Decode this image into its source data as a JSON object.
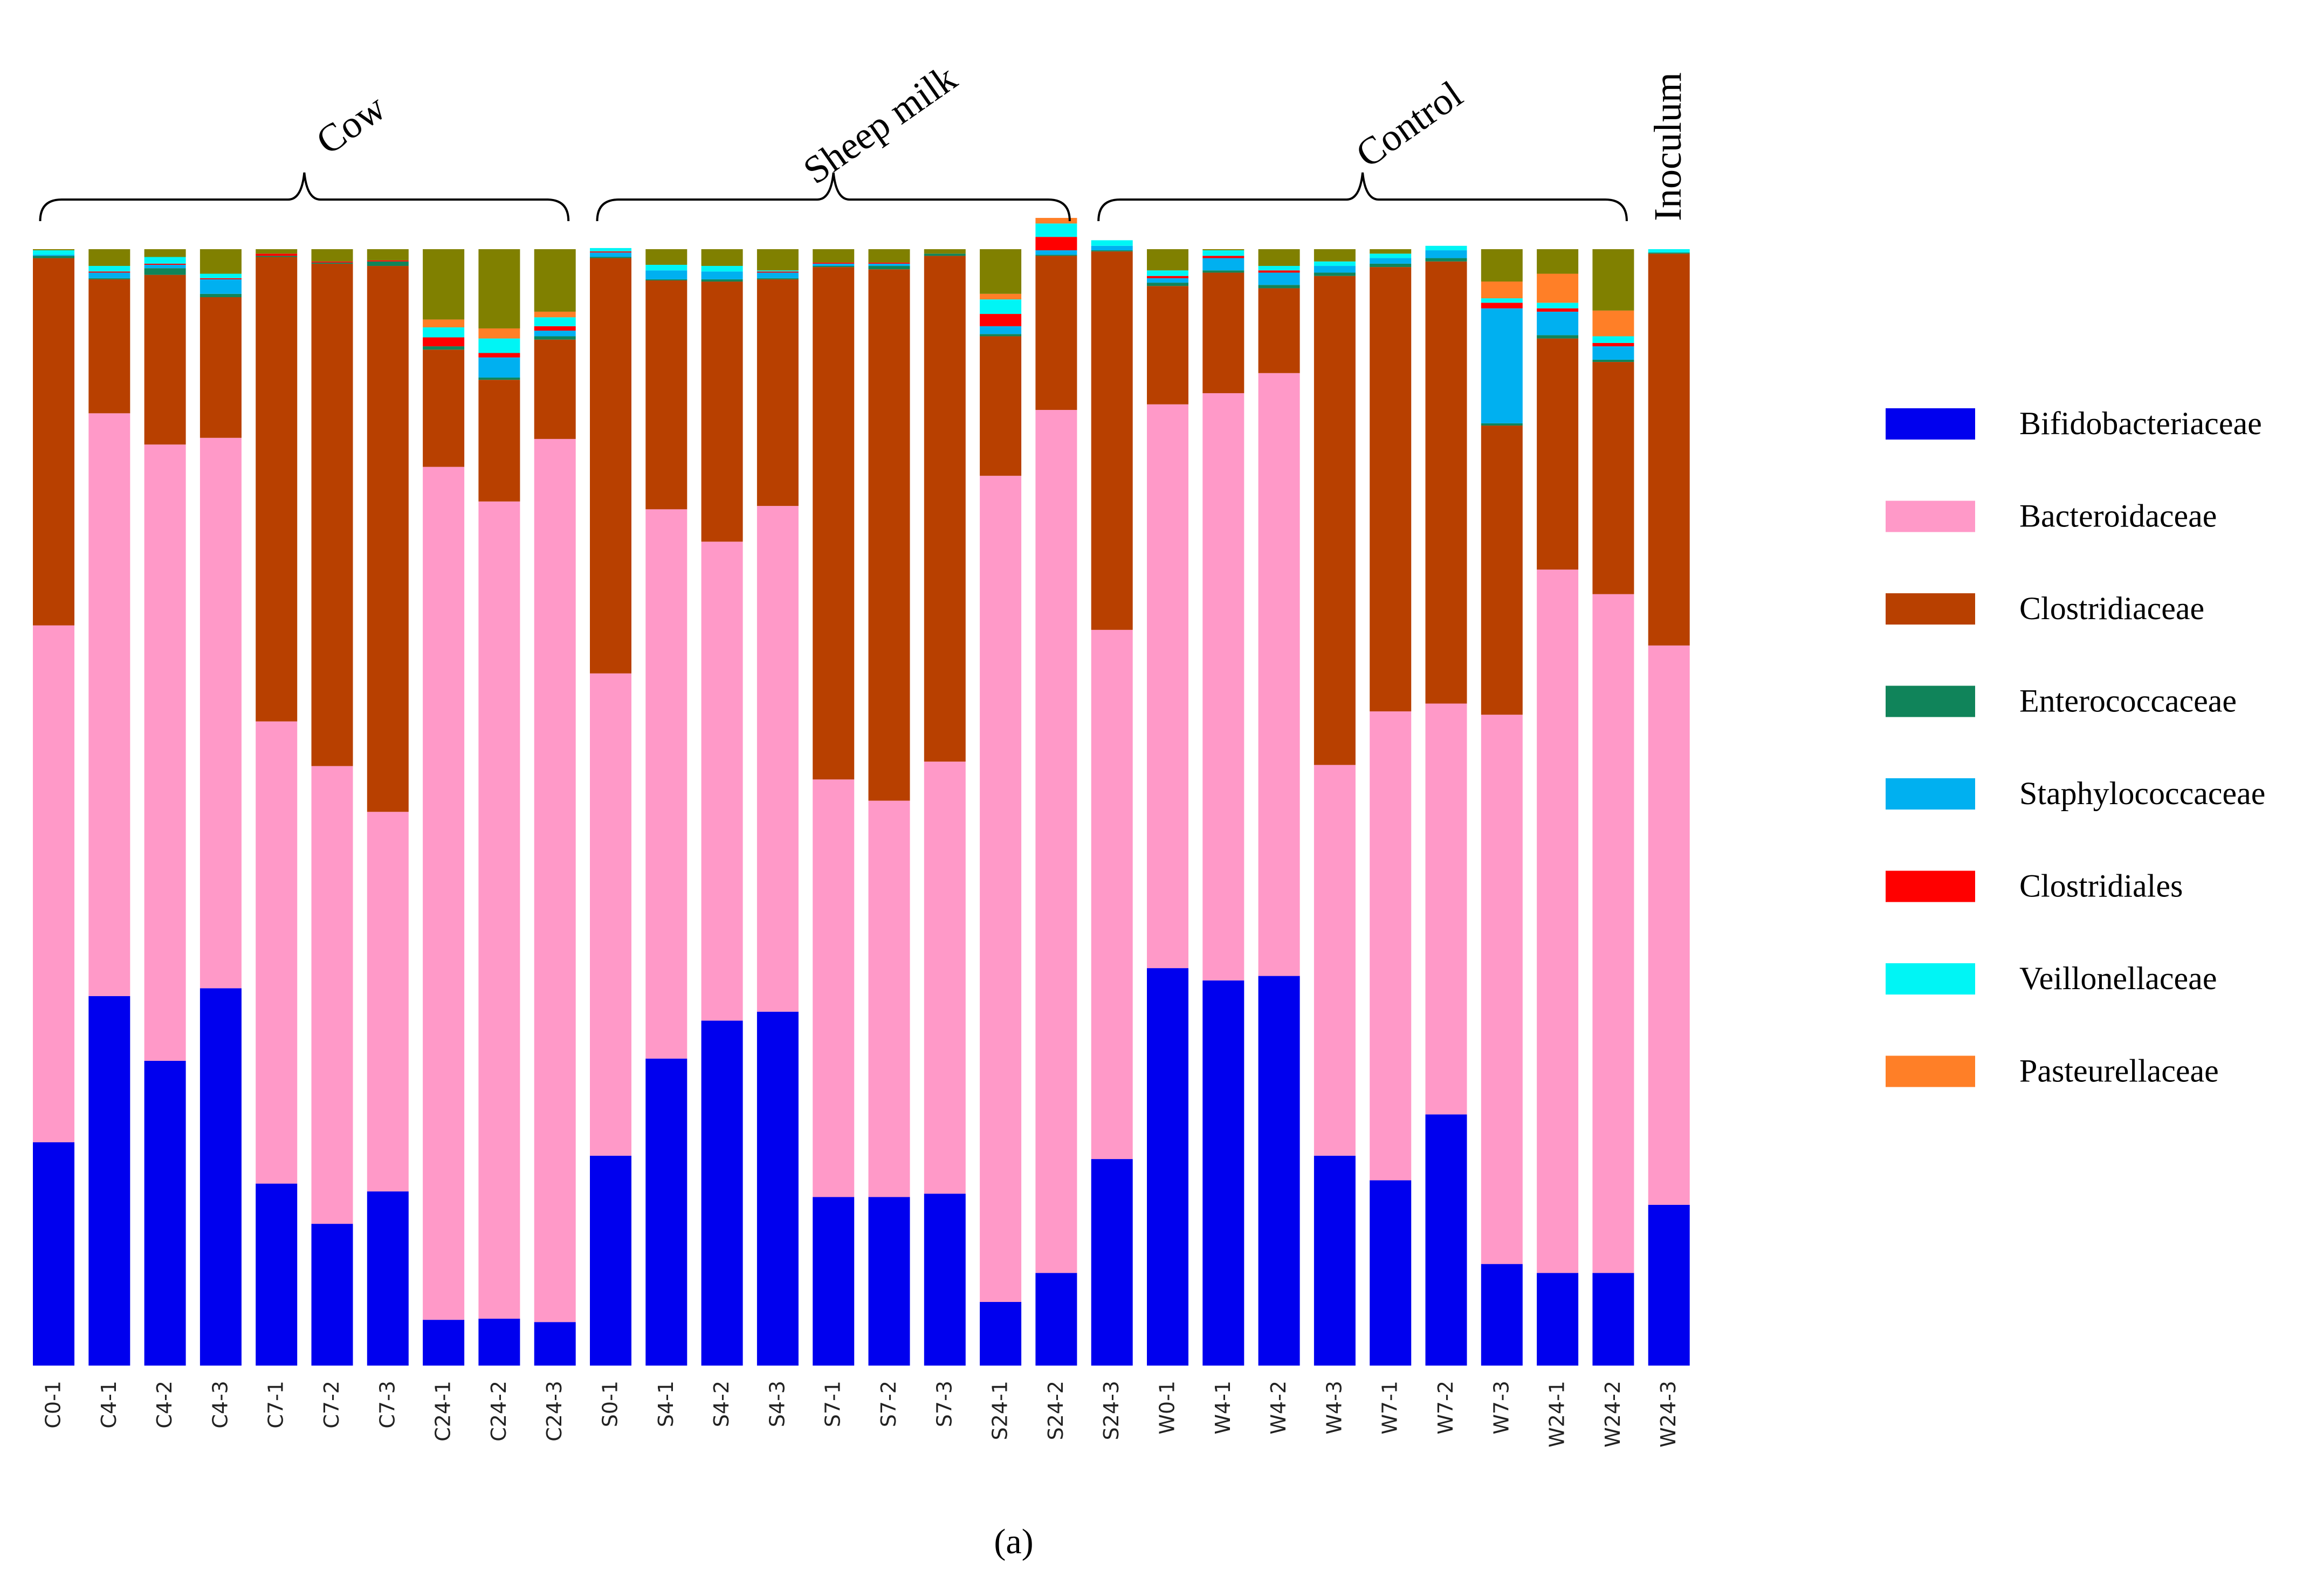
{
  "chart_data": {
    "type": "bar",
    "stacked": true,
    "normalized": true,
    "caption": "(a)",
    "groups": [
      {
        "name": "Cow",
        "categories": [
          "C0-1",
          "C4-1",
          "C4-2",
          "C4-3",
          "C7-1",
          "C7-2",
          "C7-3",
          "C24-1",
          "C24-2",
          "C24-3"
        ]
      },
      {
        "name": "Sheep milk",
        "categories": [
          "S0-1",
          "S4-1",
          "S4-2",
          "S4-3",
          "S7-1",
          "S7-2",
          "S7-3",
          "S24-1",
          "S24-2"
        ]
      },
      {
        "name": "Control",
        "categories": [
          "S24-3",
          "W0-1",
          "W4-1",
          "W4-2",
          "W4-3",
          "W7-1",
          "W7-2",
          "W7-3",
          "W24-1",
          "W24-2"
        ]
      },
      {
        "name": "Inoculum",
        "categories": [
          "W24-3"
        ]
      }
    ],
    "categories": [
      "C0-1",
      "C4-1",
      "C4-2",
      "C4-3",
      "C7-1",
      "C7-2",
      "C7-3",
      "C24-1",
      "C24-2",
      "C24-3",
      "S0-1",
      "S4-1",
      "S4-2",
      "S4-3",
      "S7-1",
      "S7-2",
      "S7-3",
      "S24-1",
      "S24-2",
      "S24-3",
      "W0-1",
      "W4-1",
      "W4-2",
      "W4-3",
      "W7-1",
      "W7-2",
      "W7-3",
      "W24-1",
      "W24-2",
      "W24-3"
    ],
    "series": [
      {
        "name": "Bifidobacteriaceae",
        "color": "#0000ee",
        "values": [
          20.0,
          33.1,
          27.3,
          33.8,
          16.3,
          12.7,
          15.6,
          4.1,
          4.2,
          3.9,
          18.8,
          27.5,
          30.9,
          31.7,
          15.1,
          15.1,
          15.4,
          5.7,
          8.3,
          18.5,
          35.6,
          34.5,
          34.9,
          18.8,
          16.6,
          22.5,
          9.1,
          8.3,
          8.3,
          14.4
        ]
      },
      {
        "name": "Bacteroidaceae",
        "color": "#ff99c8",
        "values": [
          46.3,
          52.2,
          55.2,
          49.3,
          41.4,
          41.0,
          34.0,
          76.4,
          73.2,
          79.1,
          43.2,
          49.2,
          42.9,
          45.3,
          37.4,
          35.5,
          38.7,
          74.0,
          77.3,
          47.4,
          50.5,
          52.6,
          54.0,
          35.0,
          42.0,
          36.8,
          49.2,
          63.0,
          60.8,
          50.1
        ]
      },
      {
        "name": "Clostridiaceae",
        "color": "#b84000",
        "values": [
          32.9,
          12.0,
          15.2,
          12.6,
          41.6,
          45.0,
          48.9,
          10.5,
          10.9,
          8.9,
          37.2,
          20.5,
          23.3,
          20.3,
          45.9,
          47.6,
          45.3,
          12.5,
          13.8,
          33.9,
          10.6,
          10.8,
          7.6,
          43.8,
          39.8,
          39.6,
          25.9,
          20.7,
          20.8,
          35.1
        ]
      },
      {
        "name": "Enterococcaceae",
        "color": "#10845a",
        "values": [
          0.2,
          0.1,
          0.6,
          0.3,
          0.1,
          0.1,
          0.4,
          0.3,
          0.2,
          0.3,
          0.1,
          0.1,
          0.2,
          0.1,
          0.1,
          0.3,
          0.2,
          0.2,
          0.1,
          0.1,
          0.3,
          0.2,
          0.3,
          0.3,
          0.3,
          0.3,
          0.2,
          0.3,
          0.2,
          0.1
        ]
      },
      {
        "name": "Staphylococcaceae",
        "color": "#00b0f0",
        "values": [
          0.1,
          0.5,
          0.3,
          1.3,
          0.0,
          0.0,
          0.0,
          0.0,
          1.8,
          0.5,
          0.4,
          0.8,
          0.7,
          0.5,
          0.2,
          0.2,
          0.0,
          0.7,
          0.4,
          0.4,
          0.4,
          1.1,
          1.1,
          0.6,
          0.5,
          0.7,
          10.3,
          2.1,
          1.2,
          0.0
        ]
      },
      {
        "name": "Clostridiales",
        "color": "#ff0000",
        "values": [
          0.0,
          0.1,
          0.1,
          0.1,
          0.2,
          0.1,
          0.1,
          0.8,
          0.4,
          0.4,
          0.1,
          0.0,
          0.0,
          0.1,
          0.1,
          0.1,
          0.0,
          1.1,
          1.2,
          0.0,
          0.2,
          0.2,
          0.2,
          0.0,
          0.0,
          0.0,
          0.5,
          0.3,
          0.3,
          0.0
        ]
      },
      {
        "name": "Veillonellaceae",
        "color": "#00f5f5",
        "values": [
          0.4,
          0.5,
          0.6,
          0.4,
          0.0,
          0.0,
          0.0,
          0.9,
          1.3,
          0.8,
          0.3,
          0.5,
          0.5,
          0.1,
          0.0,
          0.0,
          0.0,
          1.3,
          1.2,
          0.5,
          0.5,
          0.5,
          0.4,
          0.4,
          0.4,
          0.4,
          0.4,
          0.5,
          0.6,
          0.3
        ]
      },
      {
        "name": "Pasteurellaceae",
        "color": "#ff7f27",
        "values": [
          0.0,
          0.0,
          0.0,
          0.0,
          0.0,
          0.0,
          0.0,
          0.7,
          0.9,
          0.5,
          0.0,
          0.0,
          0.0,
          0.0,
          0.0,
          0.0,
          0.0,
          0.5,
          0.5,
          0.0,
          0.0,
          0.0,
          0.0,
          0.0,
          0.0,
          0.0,
          1.5,
          2.6,
          2.3,
          0.0
        ]
      }
    ],
    "other_series_color": "#808000",
    "ylim": [
      0,
      100
    ],
    "xlabel": "",
    "ylabel": "",
    "legend_position": "right"
  }
}
